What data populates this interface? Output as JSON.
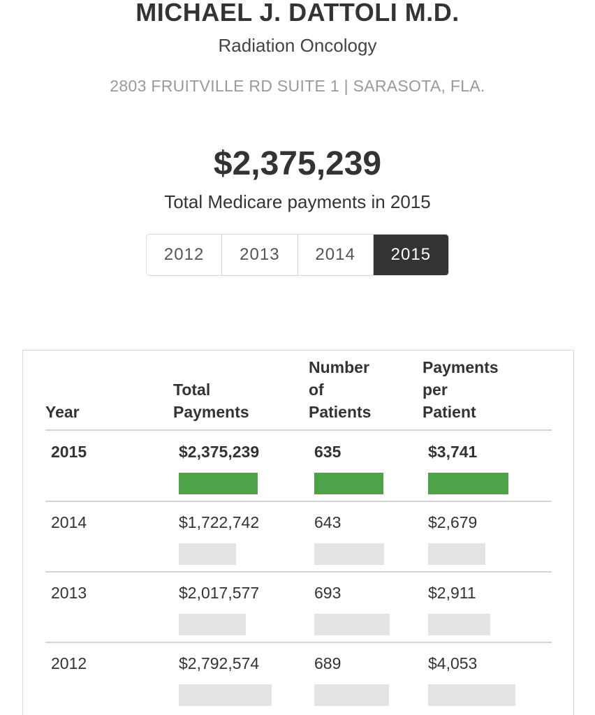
{
  "provider": {
    "name": "MICHAEL J. DATTOLI M.D.",
    "specialty": "Radiation Oncology",
    "address": "2803 FRUITVILLE RD SUITE 1 | SARASOTA, FLA."
  },
  "summary": {
    "amount": "$2,375,239",
    "caption": "Total Medicare payments in 2015"
  },
  "year_tabs": {
    "items": [
      "2012",
      "2013",
      "2014",
      "2015"
    ],
    "selected": "2015"
  },
  "table": {
    "headers": {
      "year": "Year",
      "total_payments": "Total Payments",
      "number_of_patients": "Number of Patients",
      "payments_per_patient": "Payments per Patient"
    },
    "rows": [
      {
        "year": "2015",
        "total_payments": "$2,375,239",
        "patients": "635",
        "per_patient": "$3,741",
        "current": true
      },
      {
        "year": "2014",
        "total_payments": "$1,722,742",
        "patients": "643",
        "per_patient": "$2,679",
        "current": false
      },
      {
        "year": "2013",
        "total_payments": "$2,017,577",
        "patients": "693",
        "per_patient": "$2,911",
        "current": false
      },
      {
        "year": "2012",
        "total_payments": "$2,792,574",
        "patients": "689",
        "per_patient": "$4,053",
        "current": false
      }
    ],
    "bar_max": {
      "total_payments": 3300000,
      "patients": 700,
      "per_patient": 4700
    }
  },
  "colors": {
    "current_bar": "#4ea247",
    "other_bar": "#e3e3e3",
    "active_tab": "#333333"
  }
}
